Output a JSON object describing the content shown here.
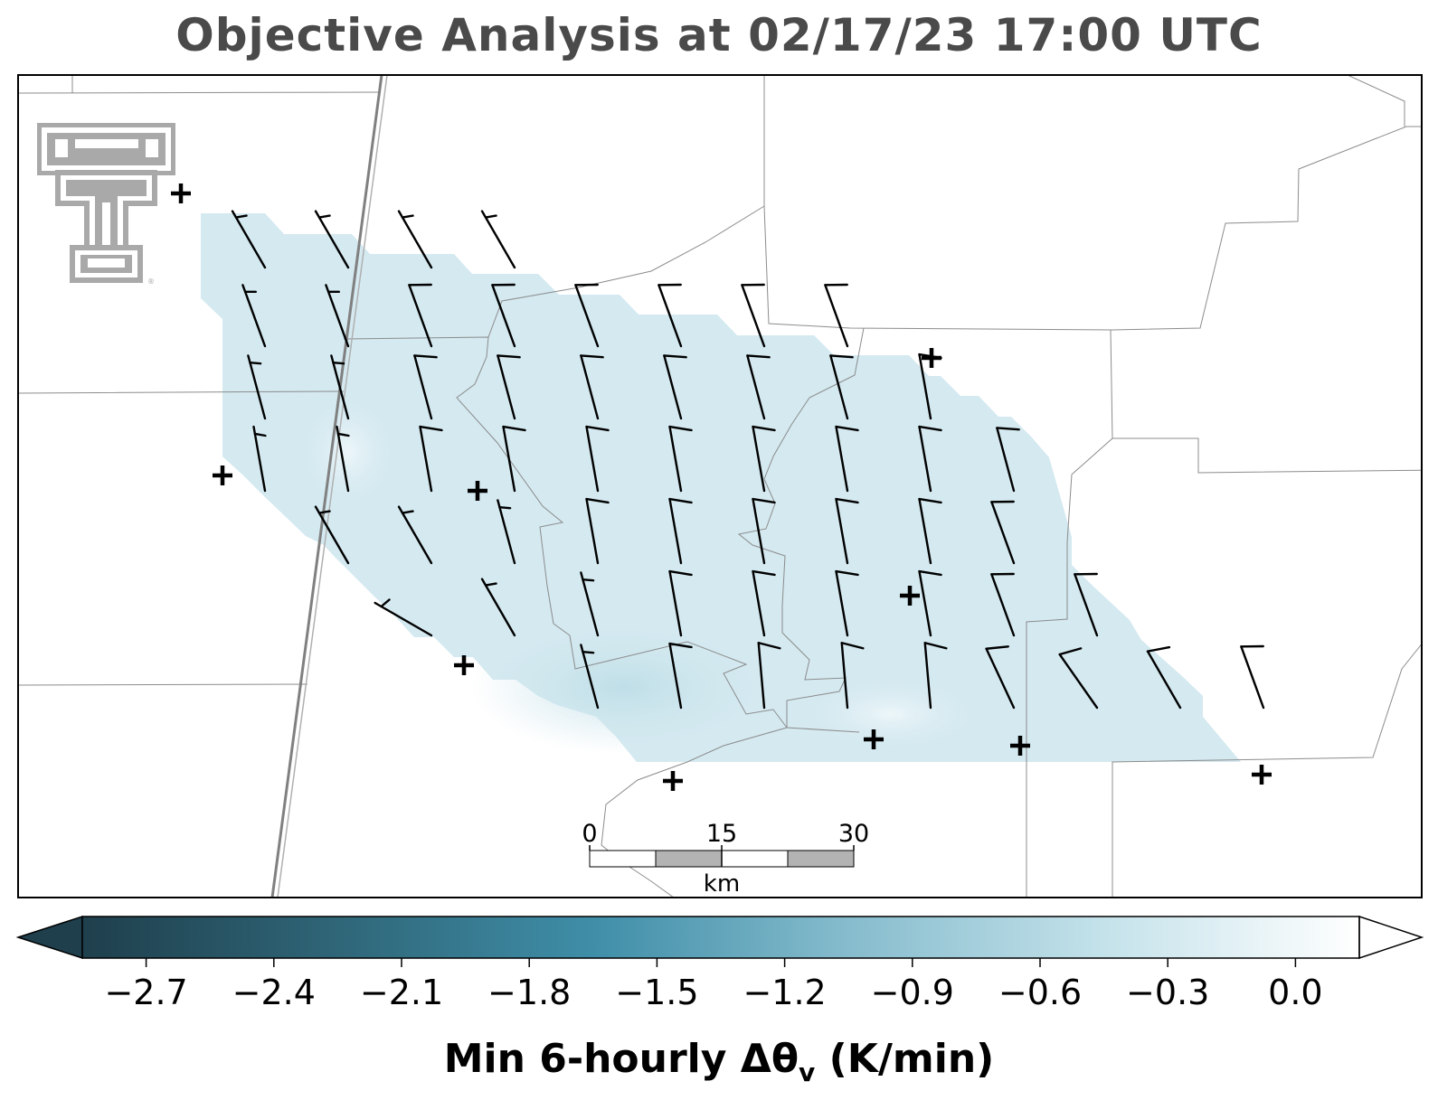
{
  "title": "Objective Analysis at 02/17/23 17:00 UTC",
  "colorbar": {
    "label_main": "Min 6-hourly Δθ",
    "label_sub": "v",
    "label_units": " (K/min)",
    "ticks": [
      "−2.7",
      "−2.4",
      "−2.1",
      "−1.8",
      "−1.5",
      "−1.2",
      "−0.9",
      "−0.6",
      "−0.3",
      "0.0"
    ],
    "tick_values": [
      -2.7,
      -2.4,
      -2.1,
      -1.8,
      -1.5,
      -1.2,
      -0.9,
      -0.6,
      -0.3,
      0.0
    ],
    "range": [
      -2.85,
      0.15
    ],
    "extend": "both",
    "colors": [
      "#1f3f4c",
      "#2f6678",
      "#3f8ea8",
      "#86bccd",
      "#c4e2ea",
      "#ffffff"
    ]
  },
  "scale_bar": {
    "ticks": [
      "0",
      "15",
      "30"
    ],
    "unit": "km"
  },
  "logo": {
    "name": "texas-tech-double-t-logo",
    "color": "#a9a9a9"
  },
  "analysis_fill": {
    "color": "#d4e9f0",
    "value_approx": -0.55
  },
  "wind_barbs": {
    "note_units": "knots",
    "rows": [
      {
        "label": "row-1",
        "barbs": [
          {
            "dir": 330,
            "speed": 5
          },
          {
            "dir": 330,
            "speed": 5
          },
          {
            "dir": 330,
            "speed": 5
          },
          {
            "dir": 330,
            "speed": 5
          }
        ]
      },
      {
        "label": "row-2",
        "barbs": [
          {
            "dir": 340,
            "speed": 5
          },
          {
            "dir": 340,
            "speed": 5
          },
          {
            "dir": 340,
            "speed": 10
          },
          {
            "dir": 340,
            "speed": 10
          },
          {
            "dir": 340,
            "speed": 10
          },
          {
            "dir": 340,
            "speed": 10
          },
          {
            "dir": 340,
            "speed": 10
          },
          {
            "dir": 340,
            "speed": 10
          }
        ]
      },
      {
        "label": "row-3",
        "barbs": [
          {
            "dir": 345,
            "speed": 5
          },
          {
            "dir": 345,
            "speed": 5
          },
          {
            "dir": 345,
            "speed": 10
          },
          {
            "dir": 345,
            "speed": 10
          },
          {
            "dir": 345,
            "speed": 10
          },
          {
            "dir": 345,
            "speed": 10
          },
          {
            "dir": 345,
            "speed": 10
          },
          {
            "dir": 345,
            "speed": 10
          },
          {
            "dir": 350,
            "speed": 10
          }
        ]
      },
      {
        "label": "row-4",
        "barbs": [
          {
            "dir": 350,
            "speed": 5
          },
          {
            "dir": 350,
            "speed": 5
          },
          {
            "dir": 350,
            "speed": 10
          },
          {
            "dir": 350,
            "speed": 10
          },
          {
            "dir": 350,
            "speed": 10
          },
          {
            "dir": 350,
            "speed": 10
          },
          {
            "dir": 350,
            "speed": 10
          },
          {
            "dir": 350,
            "speed": 10
          },
          {
            "dir": 350,
            "speed": 10
          },
          {
            "dir": 345,
            "speed": 10
          }
        ]
      },
      {
        "label": "row-5",
        "barbs": [
          {
            "dir": 330,
            "speed": 5
          },
          {
            "dir": 330,
            "speed": 5
          },
          {
            "dir": 345,
            "speed": 5
          },
          {
            "dir": 350,
            "speed": 10
          },
          {
            "dir": 350,
            "speed": 10
          },
          {
            "dir": 350,
            "speed": 10
          },
          {
            "dir": 350,
            "speed": 10
          },
          {
            "dir": 350,
            "speed": 10
          },
          {
            "dir": 340,
            "speed": 10
          }
        ]
      },
      {
        "label": "row-6",
        "barbs": [
          {
            "dir": 300,
            "speed": 5
          },
          {
            "dir": 330,
            "speed": 5
          },
          {
            "dir": 345,
            "speed": 5
          },
          {
            "dir": 350,
            "speed": 10
          },
          {
            "dir": 350,
            "speed": 10
          },
          {
            "dir": 350,
            "speed": 10
          },
          {
            "dir": 350,
            "speed": 10
          },
          {
            "dir": 340,
            "speed": 10
          },
          {
            "dir": 340,
            "speed": 10
          }
        ]
      },
      {
        "label": "row-7",
        "barbs": [
          {
            "dir": 345,
            "speed": 5
          },
          {
            "dir": 350,
            "speed": 10
          },
          {
            "dir": 355,
            "speed": 10
          },
          {
            "dir": 355,
            "speed": 10
          },
          {
            "dir": 355,
            "speed": 10
          },
          {
            "dir": 335,
            "speed": 10
          },
          {
            "dir": 325,
            "speed": 10
          },
          {
            "dir": 330,
            "speed": 10
          },
          {
            "dir": 340,
            "speed": 10
          }
        ]
      }
    ]
  }
}
